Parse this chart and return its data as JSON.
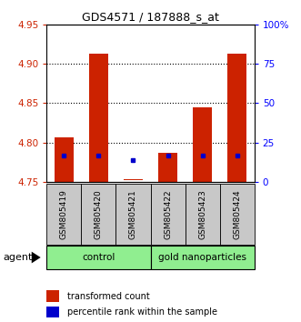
{
  "title": "GDS4571 / 187888_s_at",
  "samples": [
    "GSM805419",
    "GSM805420",
    "GSM805421",
    "GSM805422",
    "GSM805423",
    "GSM805424"
  ],
  "bar_bottoms": [
    4.75,
    4.75,
    4.752,
    4.75,
    4.75,
    4.75
  ],
  "bar_tops": [
    4.807,
    4.913,
    4.754,
    4.787,
    4.845,
    4.913
  ],
  "percentile_values": [
    4.783,
    4.783,
    4.778,
    4.783,
    4.783,
    4.783
  ],
  "ylim": [
    4.75,
    4.95
  ],
  "yticks_left": [
    4.75,
    4.8,
    4.85,
    4.9,
    4.95
  ],
  "yticks_right_positions": [
    4.75,
    4.8,
    4.85,
    4.9,
    4.95
  ],
  "yticks_right_labels": [
    "0",
    "25",
    "50",
    "75",
    "100%"
  ],
  "bar_color": "#CC2200",
  "percentile_color": "#0000CC",
  "label_bg_color": "#C8C8C8",
  "group_color": "#90EE90",
  "agent_label": "agent",
  "legend_bar_label": "transformed count",
  "legend_pct_label": "percentile rank within the sample",
  "group_ranges": [
    [
      0,
      2,
      "control"
    ],
    [
      3,
      5,
      "gold nanoparticles"
    ]
  ]
}
